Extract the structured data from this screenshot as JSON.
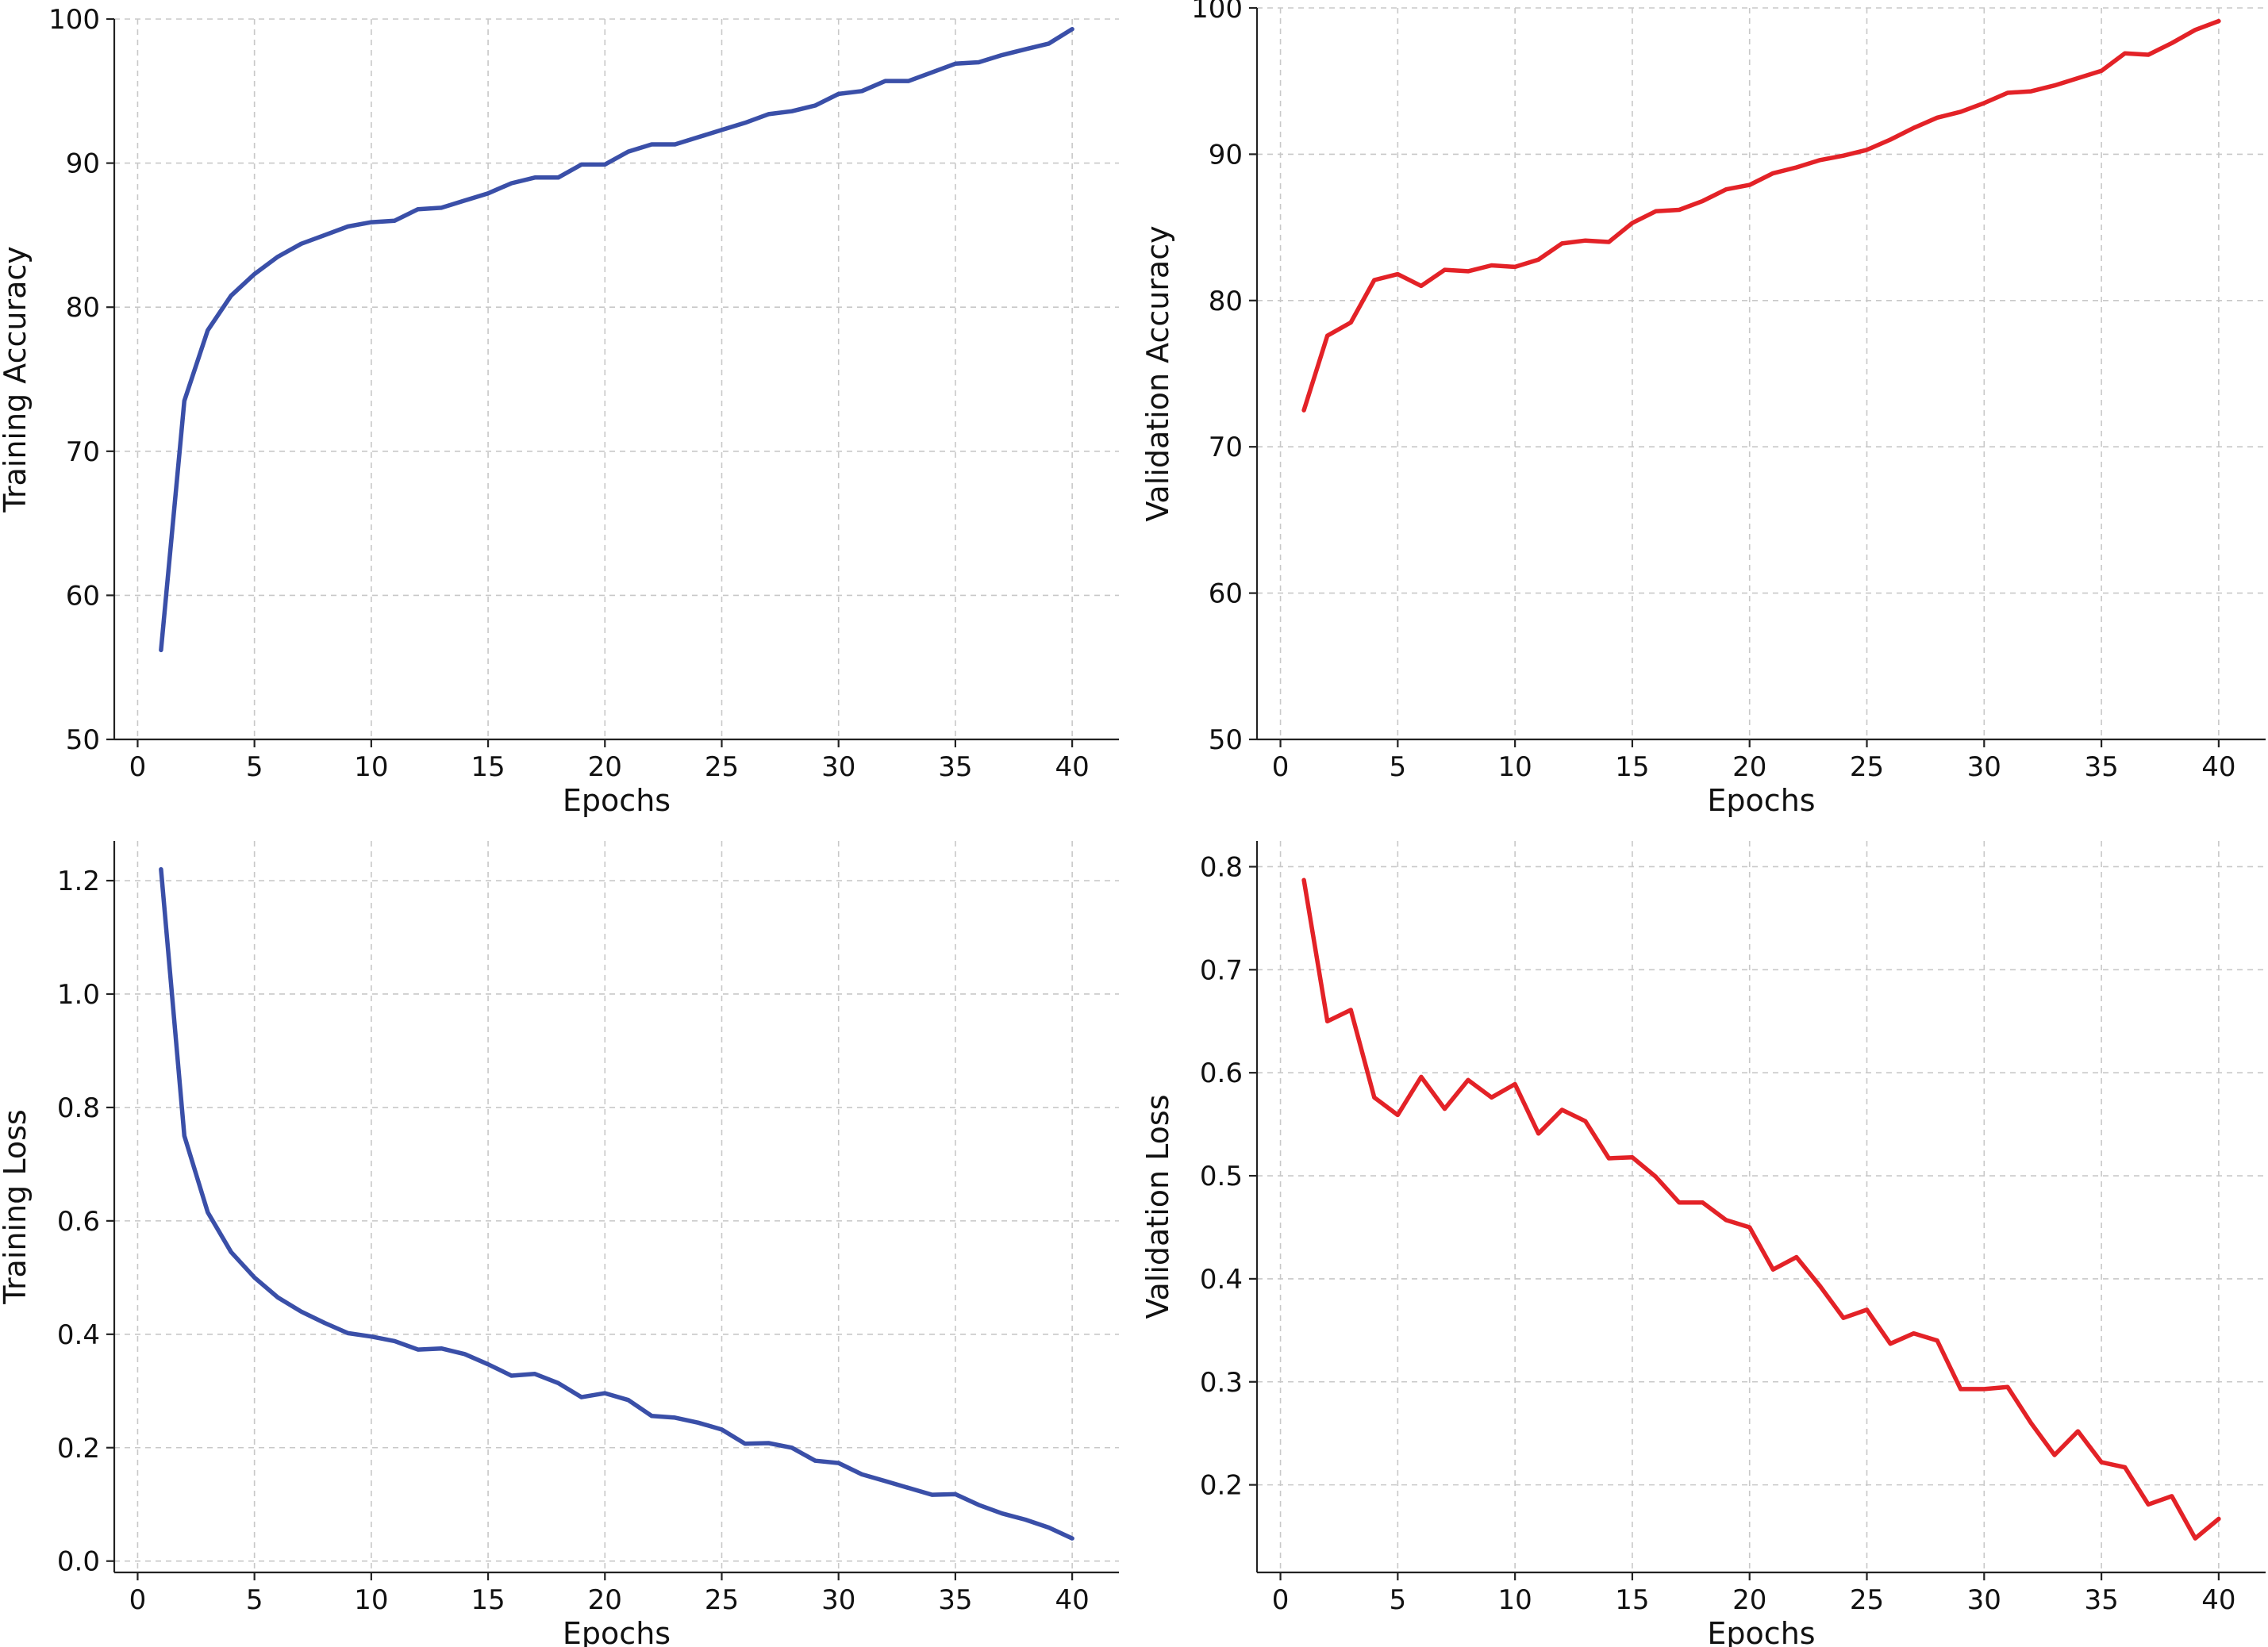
{
  "chart_data": [
    {
      "id": "training-accuracy",
      "type": "line",
      "xlabel": "Epochs",
      "ylabel": "Training Accuracy",
      "xlim": [
        -1,
        42
      ],
      "ylim": [
        50,
        100
      ],
      "xticks": [
        0,
        5,
        10,
        15,
        20,
        25,
        30,
        35,
        40
      ],
      "yticks": [
        50,
        60,
        70,
        80,
        90,
        100
      ],
      "ytick_decimals": 0,
      "grid": true,
      "color": "#3a4fa8",
      "x": [
        1,
        2,
        3,
        4,
        5,
        6,
        7,
        8,
        9,
        10,
        11,
        12,
        13,
        14,
        15,
        16,
        17,
        18,
        19,
        20,
        21,
        22,
        23,
        24,
        25,
        26,
        27,
        28,
        29,
        30,
        31,
        32,
        33,
        34,
        35,
        36,
        37,
        38,
        39,
        40
      ],
      "series": [
        {
          "values": [
            56.2,
            73.5,
            78.4,
            80.8,
            82.3,
            83.5,
            84.4,
            85.0,
            85.6,
            85.9,
            86.0,
            86.8,
            86.9,
            87.4,
            87.9,
            88.6,
            89.0,
            89.0,
            89.9,
            89.9,
            90.8,
            91.3,
            91.3,
            91.8,
            92.3,
            92.8,
            93.4,
            93.6,
            94.0,
            94.8,
            95.0,
            95.7,
            95.7,
            96.3,
            96.9,
            97.0,
            97.5,
            97.9,
            98.3,
            99.3
          ]
        }
      ]
    },
    {
      "id": "validation-accuracy",
      "type": "line",
      "xlabel": "Epochs",
      "ylabel": "Validation Accuracy",
      "xlim": [
        -1,
        42
      ],
      "ylim": [
        50,
        100
      ],
      "xticks": [
        0,
        5,
        10,
        15,
        20,
        25,
        30,
        35,
        40
      ],
      "yticks": [
        50,
        60,
        70,
        80,
        90,
        100
      ],
      "ytick_decimals": 0,
      "grid": true,
      "color": "#e32227",
      "x": [
        1,
        2,
        3,
        4,
        5,
        6,
        7,
        8,
        9,
        10,
        11,
        12,
        13,
        14,
        15,
        16,
        17,
        18,
        19,
        20,
        21,
        22,
        23,
        24,
        25,
        26,
        27,
        28,
        29,
        30,
        31,
        32,
        33,
        34,
        35,
        36,
        37,
        38,
        39,
        40
      ],
      "series": [
        {
          "values": [
            72.5,
            77.6,
            78.5,
            81.4,
            81.8,
            81.0,
            82.1,
            82.0,
            82.4,
            82.3,
            82.8,
            83.9,
            84.1,
            84.0,
            85.3,
            86.1,
            86.2,
            86.8,
            87.6,
            87.9,
            88.7,
            89.1,
            89.6,
            89.9,
            90.3,
            91.0,
            91.8,
            92.5,
            92.9,
            93.5,
            94.2,
            94.3,
            94.7,
            95.2,
            95.7,
            96.9,
            96.8,
            97.6,
            98.5,
            99.1
          ]
        }
      ]
    },
    {
      "id": "training-loss",
      "type": "line",
      "xlabel": "Epochs",
      "ylabel": "Training Loss",
      "xlim": [
        -1,
        42
      ],
      "ylim": [
        -0.02,
        1.27
      ],
      "xticks": [
        0,
        5,
        10,
        15,
        20,
        25,
        30,
        35,
        40
      ],
      "yticks": [
        0.0,
        0.2,
        0.4,
        0.6,
        0.8,
        1.0,
        1.2
      ],
      "ytick_decimals": 1,
      "grid": true,
      "color": "#3a4fa8",
      "x": [
        1,
        2,
        3,
        4,
        5,
        6,
        7,
        8,
        9,
        10,
        11,
        12,
        13,
        14,
        15,
        16,
        17,
        18,
        19,
        20,
        21,
        22,
        23,
        24,
        25,
        26,
        27,
        28,
        29,
        30,
        31,
        32,
        33,
        34,
        35,
        36,
        37,
        38,
        39,
        40
      ],
      "series": [
        {
          "values": [
            1.22,
            0.75,
            0.615,
            0.545,
            0.5,
            0.465,
            0.44,
            0.42,
            0.402,
            0.396,
            0.388,
            0.373,
            0.375,
            0.365,
            0.347,
            0.327,
            0.33,
            0.314,
            0.289,
            0.296,
            0.284,
            0.256,
            0.253,
            0.244,
            0.232,
            0.207,
            0.208,
            0.2,
            0.177,
            0.173,
            0.153,
            0.141,
            0.129,
            0.117,
            0.118,
            0.099,
            0.084,
            0.073,
            0.059,
            0.04
          ]
        }
      ]
    },
    {
      "id": "validation-loss",
      "type": "line",
      "xlabel": "Epochs",
      "ylabel": "Validation Loss",
      "xlim": [
        -1,
        42
      ],
      "ylim": [
        0.115,
        0.825
      ],
      "xticks": [
        0,
        5,
        10,
        15,
        20,
        25,
        30,
        35,
        40
      ],
      "yticks": [
        0.2,
        0.3,
        0.4,
        0.5,
        0.6,
        0.7,
        0.8
      ],
      "ytick_decimals": 1,
      "grid": true,
      "color": "#e32227",
      "x": [
        1,
        2,
        3,
        4,
        5,
        6,
        7,
        8,
        9,
        10,
        11,
        12,
        13,
        14,
        15,
        16,
        17,
        18,
        19,
        20,
        21,
        22,
        23,
        24,
        25,
        26,
        27,
        28,
        29,
        30,
        31,
        32,
        33,
        34,
        35,
        36,
        37,
        38,
        39,
        40
      ],
      "series": [
        {
          "values": [
            0.787,
            0.65,
            0.661,
            0.576,
            0.559,
            0.596,
            0.565,
            0.593,
            0.576,
            0.589,
            0.541,
            0.564,
            0.553,
            0.517,
            0.518,
            0.499,
            0.474,
            0.474,
            0.457,
            0.45,
            0.409,
            0.421,
            0.393,
            0.362,
            0.37,
            0.337,
            0.347,
            0.34,
            0.293,
            0.293,
            0.295,
            0.26,
            0.229,
            0.252,
            0.222,
            0.217,
            0.181,
            0.189,
            0.148,
            0.167
          ]
        }
      ]
    }
  ]
}
